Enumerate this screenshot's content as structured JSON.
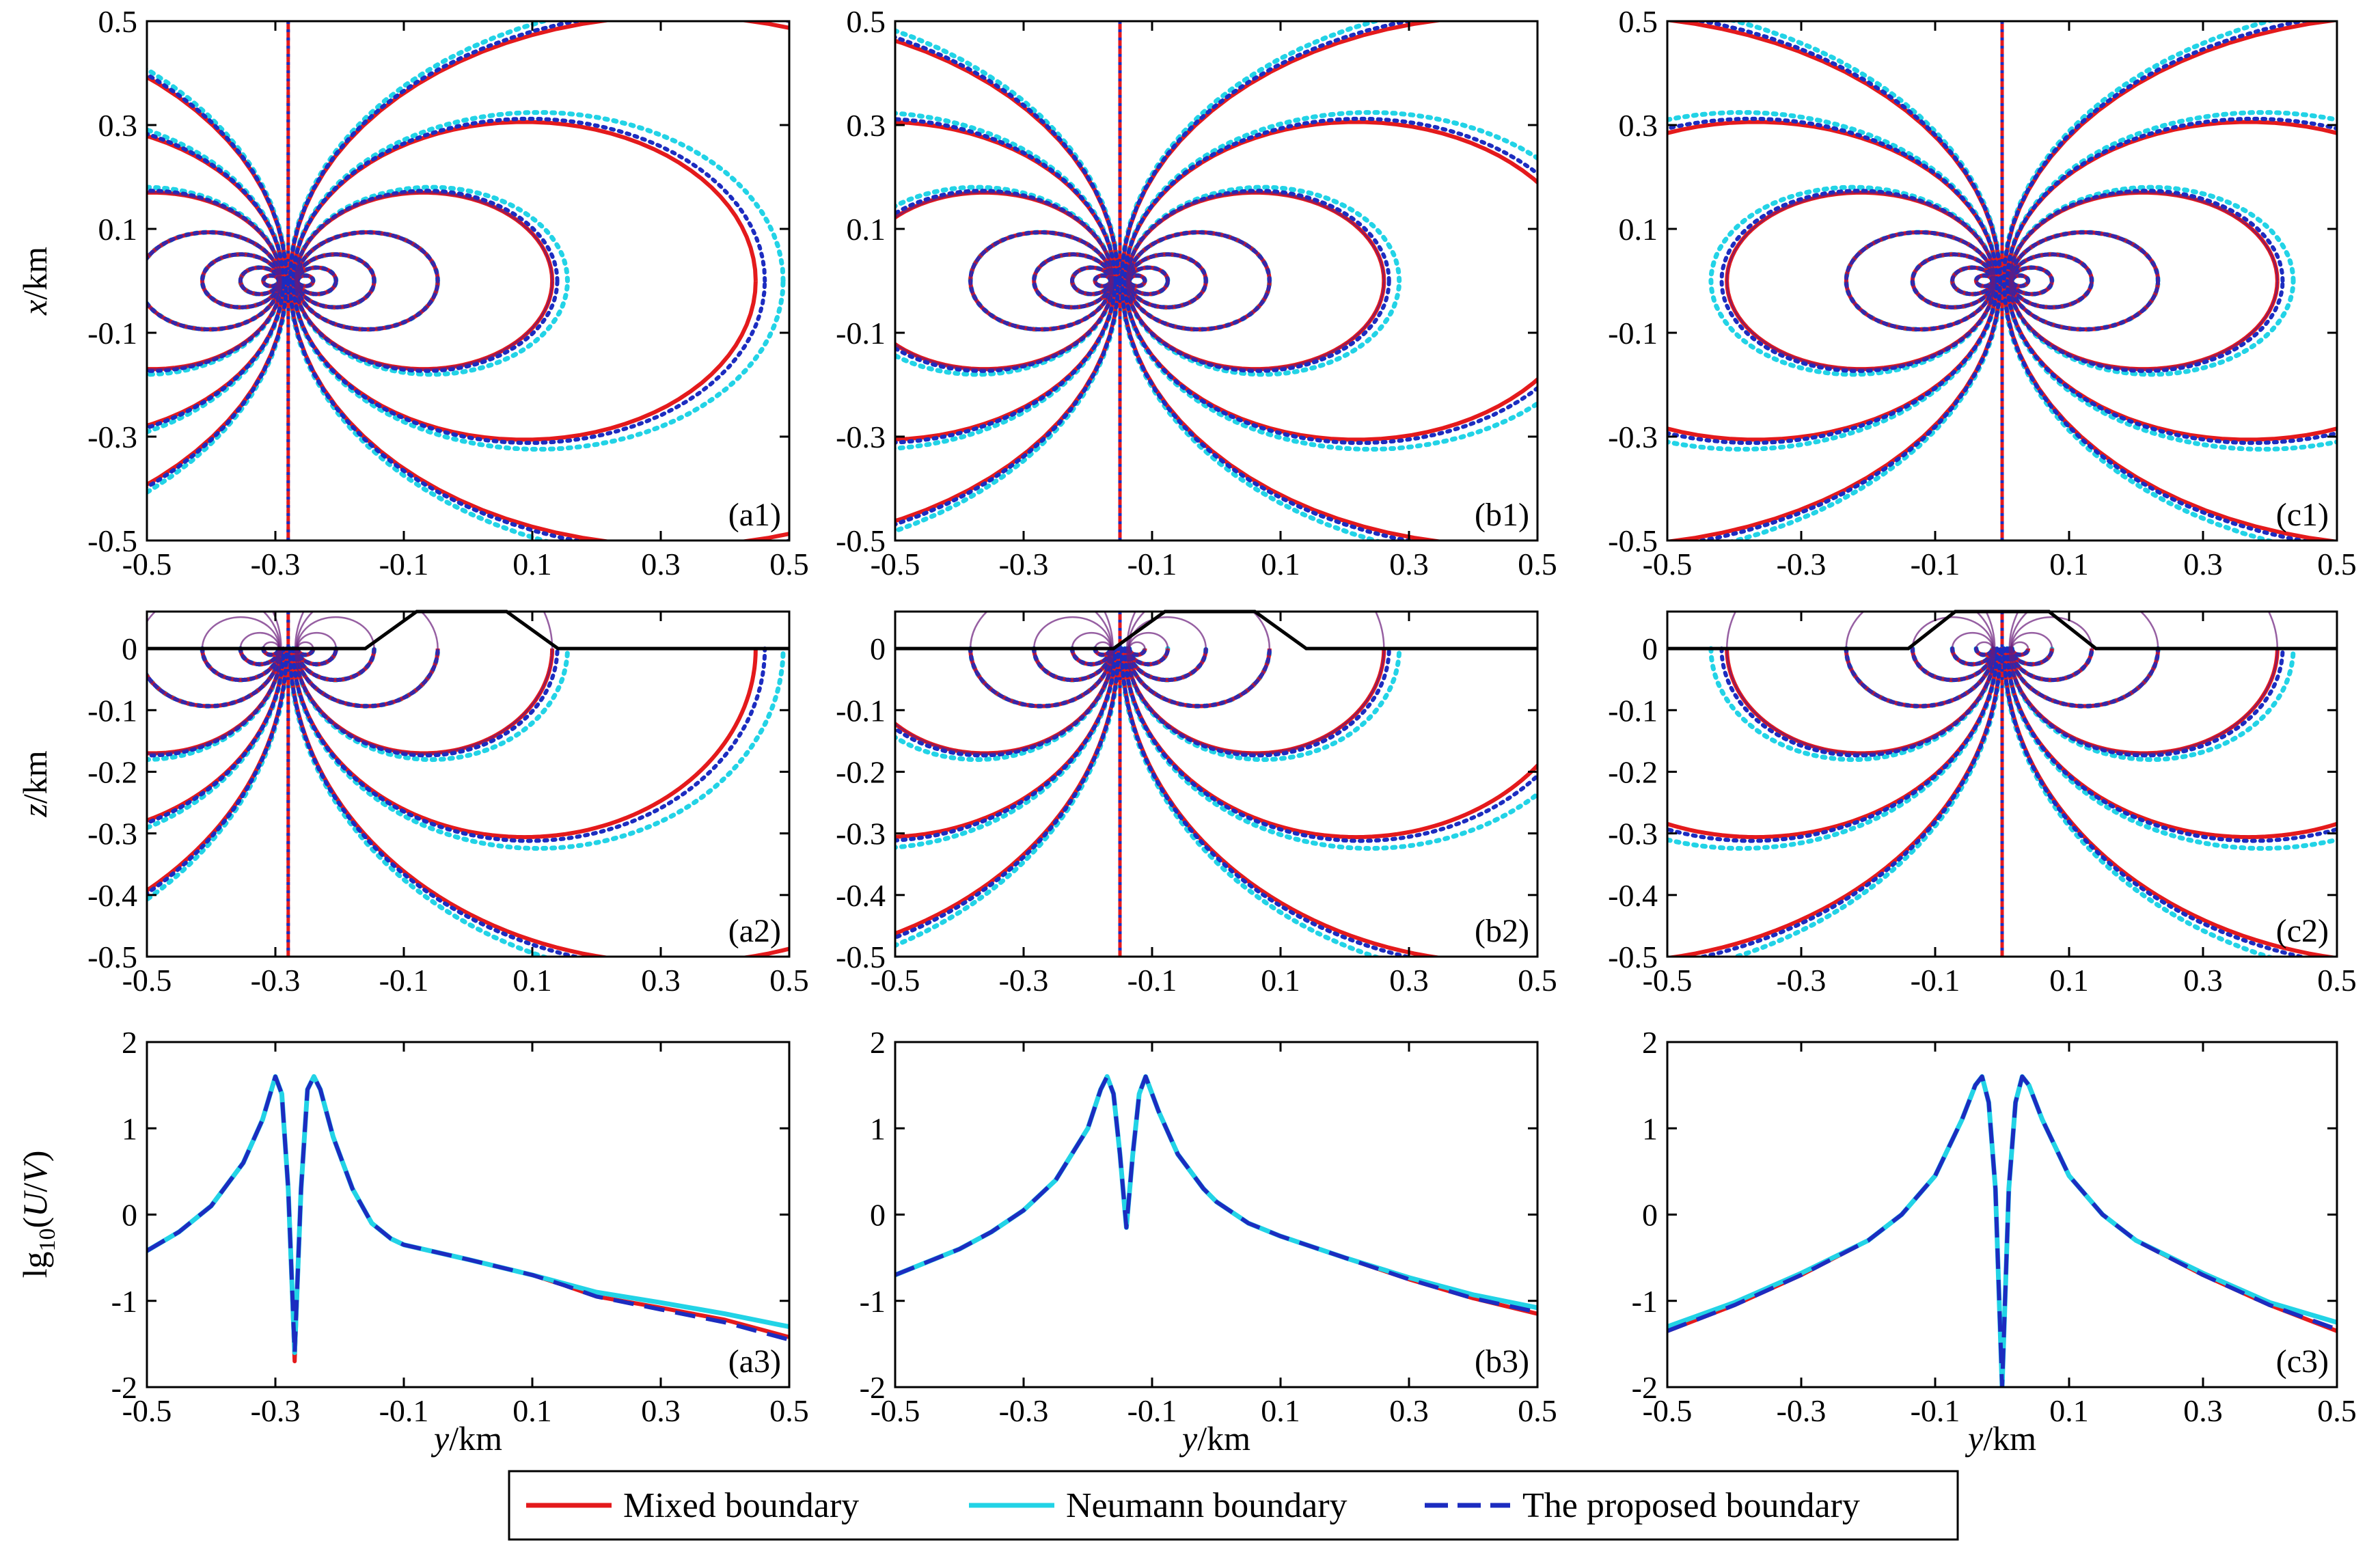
{
  "figure": {
    "type": "scientific_figure_3x3"
  },
  "legend": {
    "items": [
      {
        "label": "Mixed boundary",
        "color": "#e41a1c",
        "style": "solid"
      },
      {
        "label": "Neumann boundary",
        "color": "#22d3e6",
        "style": "solid"
      },
      {
        "label": "The proposed boundary",
        "color": "#1c2cc0",
        "style": "dashed"
      }
    ]
  },
  "colors": {
    "mixed": "#e41a1c",
    "neumann": "#22d3e6",
    "proposed": "#1c2cc0",
    "purple": "#6a1b7a",
    "terrain": "#000000"
  },
  "axis_labels": {
    "row1_y": [
      "x",
      "/km"
    ],
    "row2_y": [
      "z",
      "/km"
    ],
    "row3_y": [
      "lg",
      "10",
      "(",
      "U",
      "/",
      "V",
      ")"
    ],
    "x": [
      "y",
      "/km"
    ]
  },
  "chart_data": [
    {
      "id": "a1",
      "label": "(a1)",
      "type": "contour",
      "source_y": -0.28,
      "electrode_offset": 0.03,
      "terrain_center": 0.0,
      "xlabel": "y/km",
      "ylabel": "x/km",
      "xlim": [
        -0.5,
        0.5
      ],
      "ylim": [
        -0.5,
        0.5
      ],
      "xticks": [
        "-0.5",
        "-0.3",
        "-0.1",
        "0.1",
        "0.3",
        "0.5"
      ],
      "yticks": [
        "0.5",
        "0.3",
        "0.1",
        "-0.1",
        "-0.3",
        "-0.5"
      ]
    },
    {
      "id": "b1",
      "label": "(b1)",
      "type": "contour",
      "source_y": -0.15,
      "electrode_offset": 0.03,
      "terrain_center": 0.0,
      "xlabel": "y/km",
      "ylabel": "x/km",
      "xlim": [
        -0.5,
        0.5
      ],
      "ylim": [
        -0.5,
        0.5
      ],
      "xticks": [
        "-0.5",
        "-0.3",
        "-0.1",
        "0.1",
        "0.3",
        "0.5"
      ],
      "yticks": [
        "0.5",
        "0.3",
        "0.1",
        "-0.1",
        "-0.3",
        "-0.5"
      ]
    },
    {
      "id": "c1",
      "label": "(c1)",
      "type": "contour",
      "source_y": 0.0,
      "electrode_offset": 0.03,
      "terrain_center": 0.0,
      "xlabel": "y/km",
      "ylabel": "x/km",
      "xlim": [
        -0.5,
        0.5
      ],
      "ylim": [
        -0.5,
        0.5
      ],
      "xticks": [
        "-0.5",
        "-0.3",
        "-0.1",
        "0.1",
        "0.3",
        "0.5"
      ],
      "yticks": [
        "0.5",
        "0.3",
        "0.1",
        "-0.1",
        "-0.3",
        "-0.5"
      ]
    },
    {
      "id": "a2",
      "label": "(a2)",
      "type": "contour",
      "source_y": -0.28,
      "electrode_offset": 0.03,
      "terrain": [
        [
          -0.5,
          0
        ],
        [
          -0.16,
          0
        ],
        [
          -0.08,
          0.06
        ],
        [
          0.06,
          0.06
        ],
        [
          0.14,
          0
        ],
        [
          0.5,
          0
        ]
      ],
      "xlabel": "y/km",
      "ylabel": "z/km",
      "xlim": [
        -0.5,
        0.5
      ],
      "ylim": [
        -0.5,
        0.06
      ],
      "xticks": [
        "-0.5",
        "-0.3",
        "-0.1",
        "0.1",
        "0.3",
        "0.5"
      ],
      "yticks": [
        "0",
        "-0.1",
        "-0.2",
        "-0.3",
        "-0.4",
        "-0.5"
      ]
    },
    {
      "id": "b2",
      "label": "(b2)",
      "type": "contour",
      "source_y": -0.15,
      "electrode_offset": 0.03,
      "terrain": [
        [
          -0.5,
          0
        ],
        [
          -0.16,
          0
        ],
        [
          -0.08,
          0.06
        ],
        [
          0.06,
          0.06
        ],
        [
          0.14,
          0
        ],
        [
          0.5,
          0
        ]
      ],
      "xlabel": "y/km",
      "ylabel": "z/km",
      "xlim": [
        -0.5,
        0.5
      ],
      "ylim": [
        -0.5,
        0.06
      ],
      "xticks": [
        "-0.5",
        "-0.3",
        "-0.1",
        "0.1",
        "0.3",
        "0.5"
      ],
      "yticks": [
        "0",
        "-0.1",
        "-0.2",
        "-0.3",
        "-0.4",
        "-0.5"
      ]
    },
    {
      "id": "c2",
      "label": "(c2)",
      "type": "contour",
      "source_y": 0.0,
      "electrode_offset": 0.03,
      "terrain": [
        [
          -0.5,
          0
        ],
        [
          -0.14,
          0
        ],
        [
          -0.07,
          0.06
        ],
        [
          0.07,
          0.06
        ],
        [
          0.14,
          0
        ],
        [
          0.5,
          0
        ]
      ],
      "xlabel": "y/km",
      "ylabel": "z/km",
      "xlim": [
        -0.5,
        0.5
      ],
      "ylim": [
        -0.5,
        0.06
      ],
      "xticks": [
        "-0.5",
        "-0.3",
        "-0.1",
        "0.1",
        "0.3",
        "0.5"
      ],
      "yticks": [
        "0",
        "-0.1",
        "-0.2",
        "-0.3",
        "-0.4",
        "-0.5"
      ]
    },
    {
      "id": "a3",
      "label": "(a3)",
      "type": "line",
      "xlabel": "y/km",
      "ylabel": "lg10(U/V)",
      "xlim": [
        -0.5,
        0.5
      ],
      "ylim": [
        -2,
        2
      ],
      "xticks": [
        "-0.5",
        "-0.3",
        "-0.1",
        "0.1",
        "0.3",
        "0.5"
      ],
      "yticks": [
        "2",
        "1",
        "0",
        "-1",
        "-2"
      ],
      "x": [
        -0.5,
        -0.45,
        -0.4,
        -0.35,
        -0.32,
        -0.3,
        -0.29,
        -0.28,
        -0.27,
        -0.26,
        -0.25,
        -0.24,
        -0.23,
        -0.21,
        -0.18,
        -0.15,
        -0.12,
        -0.1,
        0.0,
        0.1,
        0.15,
        0.2,
        0.3,
        0.4,
        0.5
      ],
      "series": [
        {
          "name": "Mixed boundary",
          "values": [
            -0.42,
            -0.2,
            0.1,
            0.6,
            1.1,
            1.6,
            1.4,
            0.3,
            -1.7,
            0.3,
            1.45,
            1.6,
            1.45,
            0.9,
            0.3,
            -0.1,
            -0.28,
            -0.35,
            -0.52,
            -0.7,
            -0.82,
            -0.95,
            -1.08,
            -1.22,
            -1.42
          ]
        },
        {
          "name": "Neumann boundary",
          "values": [
            -0.42,
            -0.2,
            0.1,
            0.6,
            1.1,
            1.6,
            1.4,
            0.3,
            -1.6,
            0.3,
            1.45,
            1.6,
            1.45,
            0.9,
            0.3,
            -0.1,
            -0.28,
            -0.35,
            -0.52,
            -0.7,
            -0.8,
            -0.9,
            -1.02,
            -1.15,
            -1.3
          ]
        },
        {
          "name": "The proposed boundary",
          "values": [
            -0.42,
            -0.2,
            0.1,
            0.6,
            1.1,
            1.6,
            1.4,
            0.3,
            -1.6,
            0.3,
            1.45,
            1.6,
            1.45,
            0.9,
            0.3,
            -0.1,
            -0.28,
            -0.35,
            -0.52,
            -0.7,
            -0.82,
            -0.95,
            -1.1,
            -1.25,
            -1.45
          ]
        }
      ]
    },
    {
      "id": "b3",
      "label": "(b3)",
      "type": "line",
      "xlabel": "y/km",
      "ylabel": "lg10(U/V)",
      "xlim": [
        -0.5,
        0.5
      ],
      "ylim": [
        -2,
        2
      ],
      "xticks": [
        "-0.5",
        "-0.3",
        "-0.1",
        "0.1",
        "0.3",
        "0.5"
      ],
      "yticks": [
        "2",
        "1",
        "0",
        "-1",
        "-2"
      ],
      "x": [
        -0.5,
        -0.45,
        -0.4,
        -0.35,
        -0.3,
        -0.25,
        -0.2,
        -0.18,
        -0.17,
        -0.16,
        -0.15,
        -0.14,
        -0.13,
        -0.12,
        -0.11,
        -0.09,
        -0.06,
        -0.02,
        0.0,
        0.05,
        0.1,
        0.2,
        0.3,
        0.4,
        0.5
      ],
      "series": [
        {
          "name": "Mixed boundary",
          "values": [
            -0.7,
            -0.55,
            -0.4,
            -0.2,
            0.05,
            0.4,
            1.0,
            1.45,
            1.6,
            1.4,
            0.7,
            -0.15,
            0.7,
            1.4,
            1.6,
            1.2,
            0.7,
            0.3,
            0.15,
            -0.1,
            -0.25,
            -0.5,
            -0.75,
            -0.97,
            -1.15
          ]
        },
        {
          "name": "Neumann boundary",
          "values": [
            -0.7,
            -0.55,
            -0.4,
            -0.2,
            0.05,
            0.4,
            1.0,
            1.45,
            1.6,
            1.4,
            0.7,
            -0.15,
            0.7,
            1.4,
            1.6,
            1.2,
            0.7,
            0.3,
            0.15,
            -0.1,
            -0.25,
            -0.5,
            -0.73,
            -0.93,
            -1.08
          ]
        },
        {
          "name": "The proposed boundary",
          "values": [
            -0.7,
            -0.55,
            -0.4,
            -0.2,
            0.05,
            0.4,
            1.0,
            1.45,
            1.6,
            1.4,
            0.7,
            -0.15,
            0.7,
            1.4,
            1.6,
            1.2,
            0.7,
            0.3,
            0.15,
            -0.1,
            -0.25,
            -0.5,
            -0.75,
            -0.97,
            -1.13
          ]
        }
      ]
    },
    {
      "id": "c3",
      "label": "(c3)",
      "type": "line",
      "xlabel": "y/km",
      "ylabel": "lg10(U/V)",
      "xlim": [
        -0.5,
        0.5
      ],
      "ylim": [
        -2,
        2
      ],
      "xticks": [
        "-0.5",
        "-0.3",
        "-0.1",
        "0.1",
        "0.3",
        "0.5"
      ],
      "yticks": [
        "2",
        "1",
        "0",
        "-1",
        "-2"
      ],
      "x": [
        -0.5,
        -0.4,
        -0.3,
        -0.2,
        -0.15,
        -0.1,
        -0.06,
        -0.04,
        -0.03,
        -0.02,
        -0.01,
        0.0,
        0.01,
        0.02,
        0.03,
        0.04,
        0.06,
        0.1,
        0.15,
        0.2,
        0.3,
        0.4,
        0.5
      ],
      "series": [
        {
          "name": "Mixed boundary",
          "values": [
            -1.35,
            -1.05,
            -0.7,
            -0.3,
            0.0,
            0.45,
            1.1,
            1.5,
            1.6,
            1.3,
            0.3,
            -2.0,
            0.3,
            1.3,
            1.6,
            1.5,
            1.1,
            0.45,
            0.0,
            -0.3,
            -0.7,
            -1.05,
            -1.35
          ]
        },
        {
          "name": "Neumann boundary",
          "values": [
            -1.3,
            -1.02,
            -0.68,
            -0.3,
            0.0,
            0.45,
            1.1,
            1.5,
            1.6,
            1.3,
            0.3,
            -2.0,
            0.3,
            1.3,
            1.6,
            1.5,
            1.1,
            0.45,
            0.0,
            -0.3,
            -0.68,
            -1.02,
            -1.25
          ]
        },
        {
          "name": "The proposed boundary",
          "values": [
            -1.35,
            -1.05,
            -0.7,
            -0.3,
            0.0,
            0.45,
            1.1,
            1.5,
            1.6,
            1.3,
            0.3,
            -2.0,
            0.3,
            1.3,
            1.6,
            1.5,
            1.1,
            0.45,
            0.0,
            -0.3,
            -0.7,
            -1.05,
            -1.33
          ]
        }
      ]
    }
  ]
}
